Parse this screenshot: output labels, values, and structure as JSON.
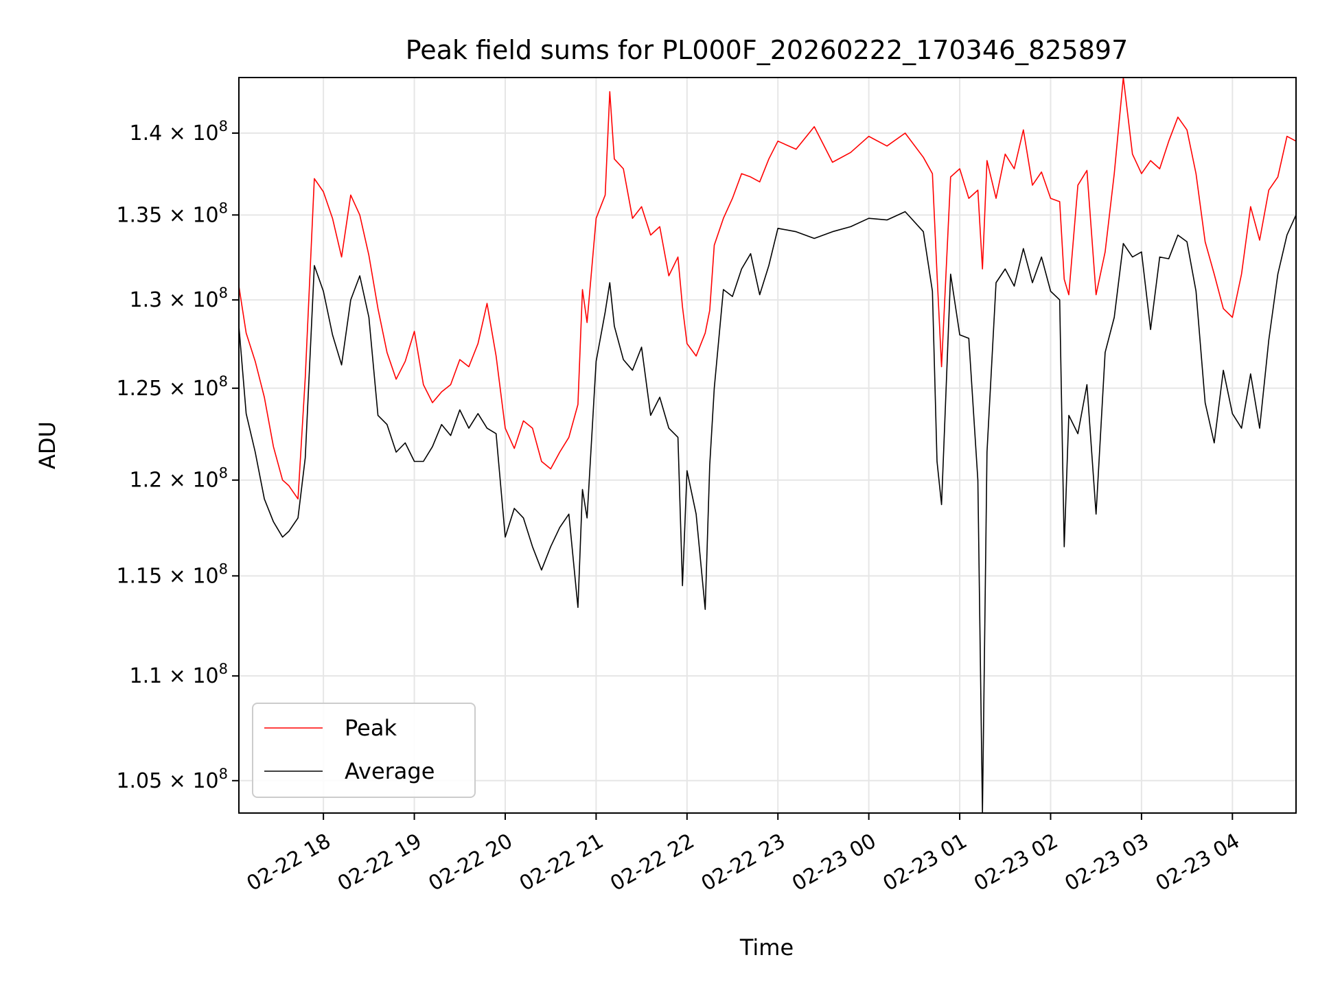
{
  "chart_data": {
    "type": "line",
    "title": "Peak field sums for PL000F_20260222_170346_825897",
    "xlabel": "Time",
    "ylabel": "ADU",
    "x_range_hours": [
      17.07,
      28.7
    ],
    "y_scale": "log",
    "ylim": [
      103500000,
      143500000
    ],
    "grid": true,
    "legend_position": "lower-left",
    "y_ticks": [
      {
        "value": 105000000,
        "mantissa": "1.05"
      },
      {
        "value": 110000000,
        "mantissa": "1.1"
      },
      {
        "value": 115000000,
        "mantissa": "1.15"
      },
      {
        "value": 120000000,
        "mantissa": "1.2"
      },
      {
        "value": 125000000,
        "mantissa": "1.25"
      },
      {
        "value": 130000000,
        "mantissa": "1.3"
      },
      {
        "value": 135000000,
        "mantissa": "1.35"
      },
      {
        "value": 140000000,
        "mantissa": "1.4"
      }
    ],
    "y_tick_exponent": "8",
    "x_ticks": [
      {
        "value": 18,
        "label": "02-22 18"
      },
      {
        "value": 19,
        "label": "02-22 19"
      },
      {
        "value": 20,
        "label": "02-22 20"
      },
      {
        "value": 21,
        "label": "02-22 21"
      },
      {
        "value": 22,
        "label": "02-22 22"
      },
      {
        "value": 23,
        "label": "02-22 23"
      },
      {
        "value": 24,
        "label": "02-23 00"
      },
      {
        "value": 25,
        "label": "02-23 01"
      },
      {
        "value": 26,
        "label": "02-23 02"
      },
      {
        "value": 27,
        "label": "02-23 03"
      },
      {
        "value": 28,
        "label": "02-23 04"
      }
    ],
    "series": [
      {
        "name": "Peak",
        "color": "#ff0000",
        "x": [
          17.07,
          17.15,
          17.25,
          17.35,
          17.45,
          17.55,
          17.62,
          17.72,
          17.8,
          17.9,
          18.0,
          18.1,
          18.2,
          18.3,
          18.4,
          18.5,
          18.6,
          18.7,
          18.8,
          18.9,
          19.0,
          19.1,
          19.2,
          19.3,
          19.4,
          19.5,
          19.6,
          19.7,
          19.8,
          19.9,
          20.0,
          20.1,
          20.2,
          20.3,
          20.4,
          20.5,
          20.6,
          20.7,
          20.8,
          20.85,
          20.9,
          21.0,
          21.1,
          21.15,
          21.2,
          21.3,
          21.4,
          21.5,
          21.6,
          21.7,
          21.8,
          21.9,
          21.95,
          22.0,
          22.1,
          22.2,
          22.25,
          22.3,
          22.4,
          22.5,
          22.6,
          22.7,
          22.8,
          22.9,
          23.0,
          23.2,
          23.4,
          23.6,
          23.8,
          24.0,
          24.2,
          24.4,
          24.6,
          24.7,
          24.75,
          24.8,
          24.9,
          25.0,
          25.1,
          25.2,
          25.25,
          25.3,
          25.4,
          25.5,
          25.6,
          25.7,
          25.8,
          25.9,
          26.0,
          26.1,
          26.15,
          26.2,
          26.3,
          26.4,
          26.5,
          26.6,
          26.7,
          26.8,
          26.9,
          27.0,
          27.1,
          27.2,
          27.3,
          27.4,
          27.5,
          27.6,
          27.7,
          27.8,
          27.9,
          28.0,
          28.1,
          28.2,
          28.3,
          28.4,
          28.5,
          28.6,
          28.7
        ],
        "values": [
          130800000,
          128100000,
          126500000,
          124500000,
          121800000,
          120000000,
          119700000,
          119000000,
          125600000,
          137200000,
          136400000,
          134800000,
          132500000,
          136200000,
          135000000,
          132600000,
          129500000,
          127000000,
          125500000,
          126500000,
          128200000,
          125200000,
          124200000,
          124800000,
          125200000,
          126600000,
          126200000,
          127500000,
          129800000,
          126800000,
          122800000,
          121700000,
          123200000,
          122800000,
          121000000,
          120600000,
          121500000,
          122300000,
          124100000,
          130600000,
          128700000,
          134800000,
          136200000,
          142600000,
          138400000,
          137800000,
          134800000,
          135500000,
          133800000,
          134300000,
          131400000,
          132500000,
          129600000,
          127500000,
          126800000,
          128100000,
          129400000,
          133200000,
          134800000,
          136000000,
          137500000,
          137300000,
          137000000,
          138400000,
          139500000,
          139000000,
          140400000,
          138200000,
          138800000,
          139800000,
          139200000,
          140000000,
          138500000,
          137500000,
          131500000,
          126200000,
          137300000,
          137800000,
          136000000,
          136500000,
          131800000,
          138300000,
          136000000,
          138700000,
          137800000,
          140200000,
          136800000,
          137600000,
          136000000,
          135800000,
          131200000,
          130300000,
          136800000,
          137700000,
          130300000,
          132800000,
          137500000,
          143500000,
          138700000,
          137500000,
          138300000,
          137800000,
          139500000,
          141000000,
          140200000,
          137500000,
          133400000,
          131500000,
          129500000,
          129000000,
          131500000,
          135500000,
          133500000,
          136500000,
          137300000,
          139800000,
          139500000
        ]
      },
      {
        "name": "Average",
        "color": "#000000",
        "x": [
          17.07,
          17.15,
          17.25,
          17.35,
          17.45,
          17.55,
          17.62,
          17.72,
          17.8,
          17.9,
          18.0,
          18.1,
          18.2,
          18.3,
          18.4,
          18.5,
          18.6,
          18.7,
          18.8,
          18.9,
          19.0,
          19.1,
          19.2,
          19.3,
          19.4,
          19.5,
          19.6,
          19.7,
          19.8,
          19.9,
          20.0,
          20.1,
          20.2,
          20.3,
          20.4,
          20.5,
          20.6,
          20.7,
          20.8,
          20.85,
          20.9,
          21.0,
          21.1,
          21.15,
          21.2,
          21.3,
          21.4,
          21.5,
          21.6,
          21.7,
          21.8,
          21.9,
          21.95,
          22.0,
          22.1,
          22.2,
          22.25,
          22.3,
          22.4,
          22.5,
          22.6,
          22.7,
          22.8,
          22.9,
          23.0,
          23.2,
          23.4,
          23.6,
          23.8,
          24.0,
          24.2,
          24.4,
          24.6,
          24.7,
          24.75,
          24.8,
          24.9,
          25.0,
          25.1,
          25.2,
          25.25,
          25.3,
          25.4,
          25.5,
          25.6,
          25.7,
          25.8,
          25.9,
          26.0,
          26.1,
          26.15,
          26.2,
          26.3,
          26.4,
          26.5,
          26.6,
          26.7,
          26.8,
          26.9,
          27.0,
          27.1,
          27.2,
          27.3,
          27.4,
          27.5,
          27.6,
          27.7,
          27.8,
          27.9,
          28.0,
          28.1,
          28.2,
          28.3,
          28.4,
          28.5,
          28.6,
          28.7
        ],
        "values": [
          128500000,
          123600000,
          121500000,
          119000000,
          117800000,
          117000000,
          117300000,
          118000000,
          121200000,
          132000000,
          130500000,
          128000000,
          126300000,
          130000000,
          131400000,
          129000000,
          123500000,
          123000000,
          121500000,
          122000000,
          121000000,
          121000000,
          121800000,
          123000000,
          122400000,
          123800000,
          122800000,
          123600000,
          122800000,
          122500000,
          117000000,
          118500000,
          118000000,
          116500000,
          115300000,
          116500000,
          117500000,
          118200000,
          113400000,
          119500000,
          118000000,
          126500000,
          129300000,
          131000000,
          128500000,
          126600000,
          126000000,
          127300000,
          123500000,
          124500000,
          122800000,
          122300000,
          114500000,
          120500000,
          118200000,
          113300000,
          120800000,
          125000000,
          130600000,
          130200000,
          131800000,
          132700000,
          130300000,
          132000000,
          134200000,
          134000000,
          133600000,
          134000000,
          134300000,
          134800000,
          134700000,
          135200000,
          134000000,
          130500000,
          121000000,
          118700000,
          131500000,
          128000000,
          127800000,
          120000000,
          103500000,
          121500000,
          131000000,
          131800000,
          130800000,
          133000000,
          131000000,
          132500000,
          130500000,
          130000000,
          116500000,
          123500000,
          122500000,
          125200000,
          118200000,
          127000000,
          129000000,
          133300000,
          132500000,
          132800000,
          128300000,
          132500000,
          132400000,
          133800000,
          133400000,
          130500000,
          124200000,
          122000000,
          126000000,
          123600000,
          122800000,
          125800000,
          122800000,
          127700000,
          131500000,
          133800000,
          135000000
        ]
      }
    ]
  }
}
